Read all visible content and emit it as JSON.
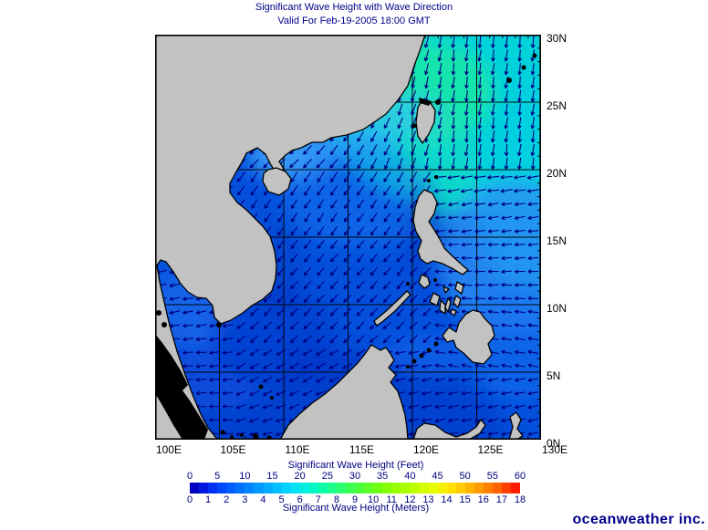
{
  "title": {
    "line1": "Significant Wave Height with Wave Direction",
    "line2": "Valid For Feb-19-2005 18:00 GMT"
  },
  "map": {
    "lon_labels": [
      "100E",
      "105E",
      "110E",
      "115E",
      "120E",
      "125E",
      "130E"
    ],
    "lat_labels": [
      "30N",
      "25N",
      "20N",
      "15N",
      "10N",
      "5N",
      "0N"
    ],
    "land_color": "#c2c2c2",
    "outline_color": "#000000",
    "arrow_color": "#000080",
    "ocean_base_color": "#0450dc",
    "grid_color": "#000000"
  },
  "legend": {
    "feet_label": "Significant Wave Height (Feet)",
    "meters_label": "Significant Wave Height (Meters)",
    "feet_ticks": [
      0,
      5,
      10,
      15,
      20,
      25,
      30,
      35,
      40,
      45,
      50,
      55,
      60
    ],
    "meter_ticks": [
      0,
      1,
      2,
      3,
      4,
      5,
      6,
      7,
      8,
      9,
      10,
      11,
      12,
      13,
      14,
      15,
      16,
      17,
      18
    ],
    "colors": [
      "#0000c0",
      "#0018e0",
      "#0030f4",
      "#0048ff",
      "#005cff",
      "#0070ff",
      "#0084ff",
      "#0098ff",
      "#00acff",
      "#00c0ff",
      "#00d2ff",
      "#00e2f4",
      "#00eede",
      "#00f8c4",
      "#0cfca8",
      "#1cff8c",
      "#2cff70",
      "#3cff54",
      "#4cff3c",
      "#5cff28",
      "#70ff14",
      "#84ff08",
      "#98ff00",
      "#acff00",
      "#c0ff00",
      "#d4ff00",
      "#e6fc00",
      "#f4f000",
      "#ffe000",
      "#ffcc00",
      "#ffb400",
      "#ff9a00",
      "#ff8000",
      "#ff6200",
      "#ff4000",
      "#ff1c00"
    ],
    "text_color": "#000080"
  },
  "branding": {
    "logo_text": "oceanweather inc.",
    "color": "#00008b"
  }
}
